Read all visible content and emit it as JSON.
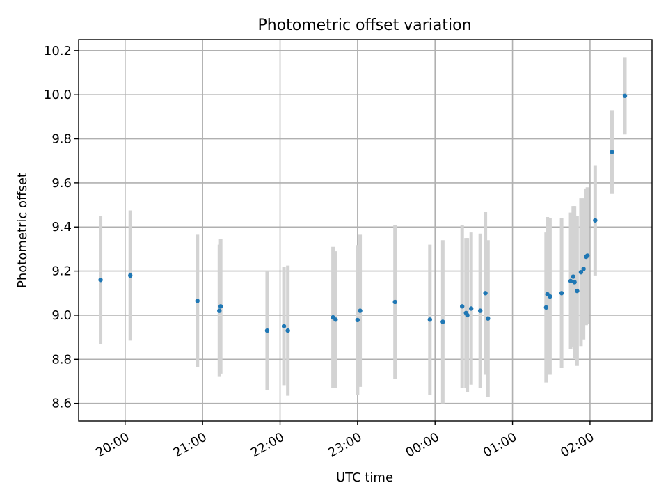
{
  "chart_data": {
    "type": "scatter",
    "title": "Photometric offset variation",
    "xlabel": "UTC time",
    "ylabel": "Photometric offset",
    "x_unit": "UTC hh:mm (times after 00:00 belong to the following day)",
    "xlim": [
      "19:24",
      "02:48"
    ],
    "ylim": [
      8.52,
      10.25
    ],
    "x_ticks": [
      "20:00",
      "21:00",
      "22:00",
      "23:00",
      "00:00",
      "01:00",
      "02:00"
    ],
    "y_ticks": [
      "8.6",
      "8.8",
      "9.0",
      "9.2",
      "9.4",
      "9.6",
      "9.8",
      "10.0",
      "10.2"
    ],
    "grid": true,
    "colors": {
      "point": "#1f77b4",
      "errorbar": "#d3d3d3"
    },
    "points": [
      {
        "x": "19:41",
        "y": 9.16,
        "yerr": 0.29
      },
      {
        "x": "20:04",
        "y": 9.18,
        "yerr": 0.295
      },
      {
        "x": "20:56",
        "y": 9.065,
        "yerr": 0.3
      },
      {
        "x": "21:13",
        "y": 9.02,
        "yerr": 0.3
      },
      {
        "x": "21:14",
        "y": 9.04,
        "yerr": 0.305
      },
      {
        "x": "21:50",
        "y": 8.93,
        "yerr": 0.27
      },
      {
        "x": "22:03",
        "y": 8.95,
        "yerr": 0.27
      },
      {
        "x": "22:06",
        "y": 8.93,
        "yerr": 0.295
      },
      {
        "x": "22:41",
        "y": 8.99,
        "yerr": 0.32
      },
      {
        "x": "22:43",
        "y": 8.98,
        "yerr": 0.31
      },
      {
        "x": "23:00",
        "y": 8.978,
        "yerr": 0.34
      },
      {
        "x": "23:02",
        "y": 9.02,
        "yerr": 0.345
      },
      {
        "x": "23:29",
        "y": 9.06,
        "yerr": 0.35
      },
      {
        "x": "23:56",
        "y": 8.98,
        "yerr": 0.34
      },
      {
        "x": "00:06",
        "y": 8.97,
        "yerr": 0.37
      },
      {
        "x": "00:21",
        "y": 9.04,
        "yerr": 0.37
      },
      {
        "x": "00:24",
        "y": 9.01,
        "yerr": 0.34
      },
      {
        "x": "00:25",
        "y": 9.0,
        "yerr": 0.35
      },
      {
        "x": "00:28",
        "y": 9.03,
        "yerr": 0.345
      },
      {
        "x": "00:35",
        "y": 9.02,
        "yerr": 0.35
      },
      {
        "x": "00:39",
        "y": 9.1,
        "yerr": 0.37
      },
      {
        "x": "00:41",
        "y": 8.985,
        "yerr": 0.355
      },
      {
        "x": "01:26",
        "y": 9.035,
        "yerr": 0.34
      },
      {
        "x": "01:27",
        "y": 9.095,
        "yerr": 0.35
      },
      {
        "x": "01:29",
        "y": 9.085,
        "yerr": 0.355
      },
      {
        "x": "01:38",
        "y": 9.1,
        "yerr": 0.34
      },
      {
        "x": "01:45",
        "y": 9.155,
        "yerr": 0.31
      },
      {
        "x": "01:47",
        "y": 9.175,
        "yerr": 0.32
      },
      {
        "x": "01:48",
        "y": 9.15,
        "yerr": 0.345
      },
      {
        "x": "01:50",
        "y": 9.11,
        "yerr": 0.34
      },
      {
        "x": "01:53",
        "y": 9.195,
        "yerr": 0.335
      },
      {
        "x": "01:55",
        "y": 9.21,
        "yerr": 0.32
      },
      {
        "x": "01:57",
        "y": 9.265,
        "yerr": 0.31
      },
      {
        "x": "01:58",
        "y": 9.27,
        "yerr": 0.31
      },
      {
        "x": "02:04",
        "y": 9.43,
        "yerr": 0.25
      },
      {
        "x": "02:17",
        "y": 9.74,
        "yerr": 0.19
      },
      {
        "x": "02:27",
        "y": 9.995,
        "yerr": 0.175
      }
    ]
  }
}
